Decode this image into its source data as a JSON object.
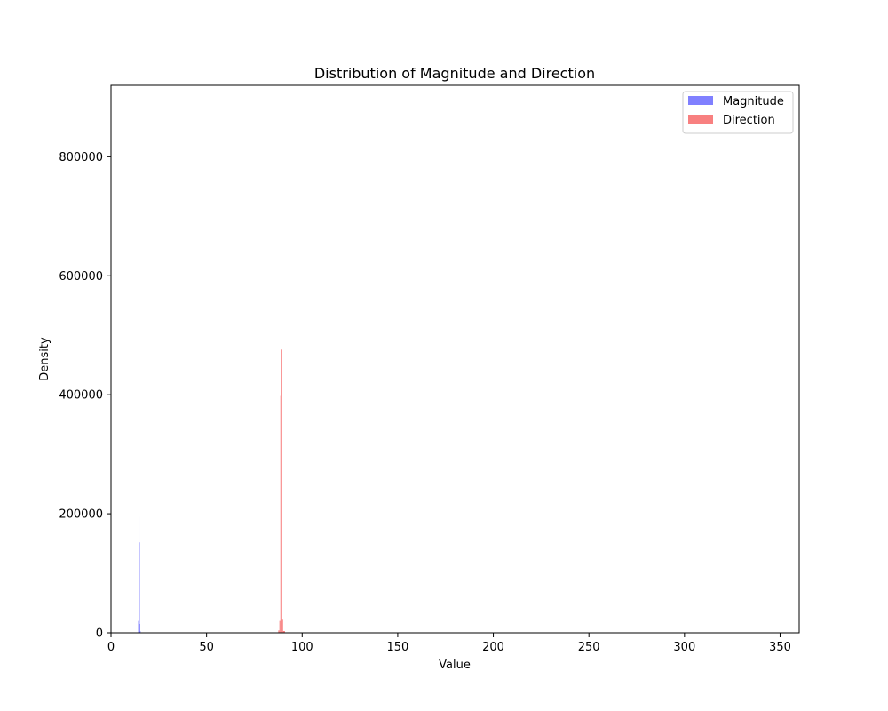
{
  "chart_data": {
    "type": "bar",
    "title": "Distribution of Magnitude and Direction",
    "xlabel": "Value",
    "ylabel": "Density",
    "xlim": [
      0,
      360
    ],
    "ylim": [
      0,
      920000
    ],
    "xticks": [
      "0",
      "50",
      "100",
      "150",
      "200",
      "250",
      "300",
      "350"
    ],
    "xtick_values": [
      0,
      50,
      100,
      150,
      200,
      250,
      300,
      350
    ],
    "yticks": [
      "0",
      "200000",
      "400000",
      "600000",
      "800000"
    ],
    "ytick_values": [
      0,
      200000,
      400000,
      600000,
      800000
    ],
    "grid": false,
    "legend_position": "top-right",
    "series": [
      {
        "name": "Magnitude",
        "color": "#8080ff",
        "bins": [
          {
            "x0": 14.2,
            "x1": 14.5,
            "value": 20000
          },
          {
            "x0": 14.5,
            "x1": 14.7,
            "value": 195000
          },
          {
            "x0": 14.7,
            "x1": 14.9,
            "value": 152000
          },
          {
            "x0": 14.9,
            "x1": 15.1,
            "value": 15000
          },
          {
            "x0": 15.1,
            "x1": 15.4,
            "value": 3000
          }
        ]
      },
      {
        "name": "Direction",
        "color": "#f88080",
        "bins": [
          {
            "x0": 87.5,
            "x1": 88.1,
            "value": 4000
          },
          {
            "x0": 88.1,
            "x1": 88.6,
            "value": 20000
          },
          {
            "x0": 88.6,
            "x1": 89.2,
            "value": 398000
          },
          {
            "x0": 89.2,
            "x1": 89.5,
            "value": 476000
          },
          {
            "x0": 89.5,
            "x1": 90.0,
            "value": 22000
          },
          {
            "x0": 90.0,
            "x1": 91.0,
            "value": 3000
          }
        ]
      }
    ]
  }
}
